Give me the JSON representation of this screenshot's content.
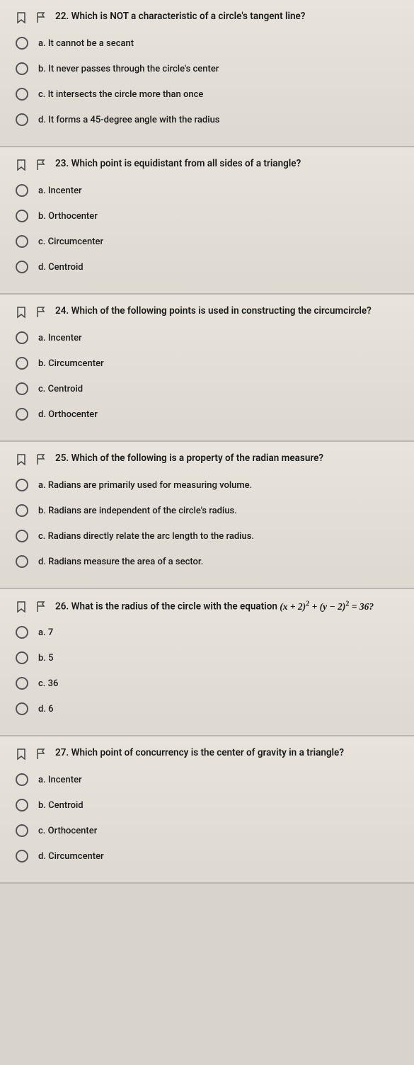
{
  "questions": [
    {
      "number": "22.",
      "text": "Which is NOT a characteristic of a circle's tangent line?",
      "options": [
        {
          "letter": "a.",
          "text": "It cannot be a secant"
        },
        {
          "letter": "b.",
          "text": "It never passes through the circle's center"
        },
        {
          "letter": "c.",
          "text": "It intersects the circle more than once"
        },
        {
          "letter": "d.",
          "text": "It forms a 45-degree angle with the radius"
        }
      ]
    },
    {
      "number": "23.",
      "text": "Which point is equidistant from all sides of a triangle?",
      "options": [
        {
          "letter": "a.",
          "text": "Incenter"
        },
        {
          "letter": "b.",
          "text": "Orthocenter"
        },
        {
          "letter": "c.",
          "text": "Circumcenter"
        },
        {
          "letter": "d.",
          "text": "Centroid"
        }
      ]
    },
    {
      "number": "24.",
      "text": "Which of the following points is used in constructing the circumcircle?",
      "options": [
        {
          "letter": "a.",
          "text": "Incenter"
        },
        {
          "letter": "b.",
          "text": "Circumcenter"
        },
        {
          "letter": "c.",
          "text": "Centroid"
        },
        {
          "letter": "d.",
          "text": "Orthocenter"
        }
      ]
    },
    {
      "number": "25.",
      "text": "Which of the following is a property of the radian measure?",
      "options": [
        {
          "letter": "a.",
          "text": "Radians are primarily used for measuring volume."
        },
        {
          "letter": "b.",
          "text": "Radians are independent of the circle's radius."
        },
        {
          "letter": "c.",
          "text": "Radians directly relate the arc length to the radius."
        },
        {
          "letter": "d.",
          "text": "Radians measure the area of a sector."
        }
      ]
    },
    {
      "number": "26.",
      "text_prefix": "What is the radius of the circle with the equation ",
      "equation": "(x + 2)² + (y − 2)² = 36?",
      "options": [
        {
          "letter": "a.",
          "text": "7"
        },
        {
          "letter": "b.",
          "text": "5"
        },
        {
          "letter": "c.",
          "text": "36"
        },
        {
          "letter": "d.",
          "text": "6"
        }
      ]
    },
    {
      "number": "27.",
      "text": "Which point of concurrency is the center of gravity in a triangle?",
      "options": [
        {
          "letter": "a.",
          "text": "Incenter"
        },
        {
          "letter": "b.",
          "text": "Centroid"
        },
        {
          "letter": "c.",
          "text": "Orthocenter"
        },
        {
          "letter": "d.",
          "text": "Circumcenter"
        }
      ]
    }
  ],
  "colors": {
    "background": "#d8d4cc",
    "text": "#1a1a1a",
    "radio_border": "#555555",
    "divider": "#bbb7ae"
  }
}
